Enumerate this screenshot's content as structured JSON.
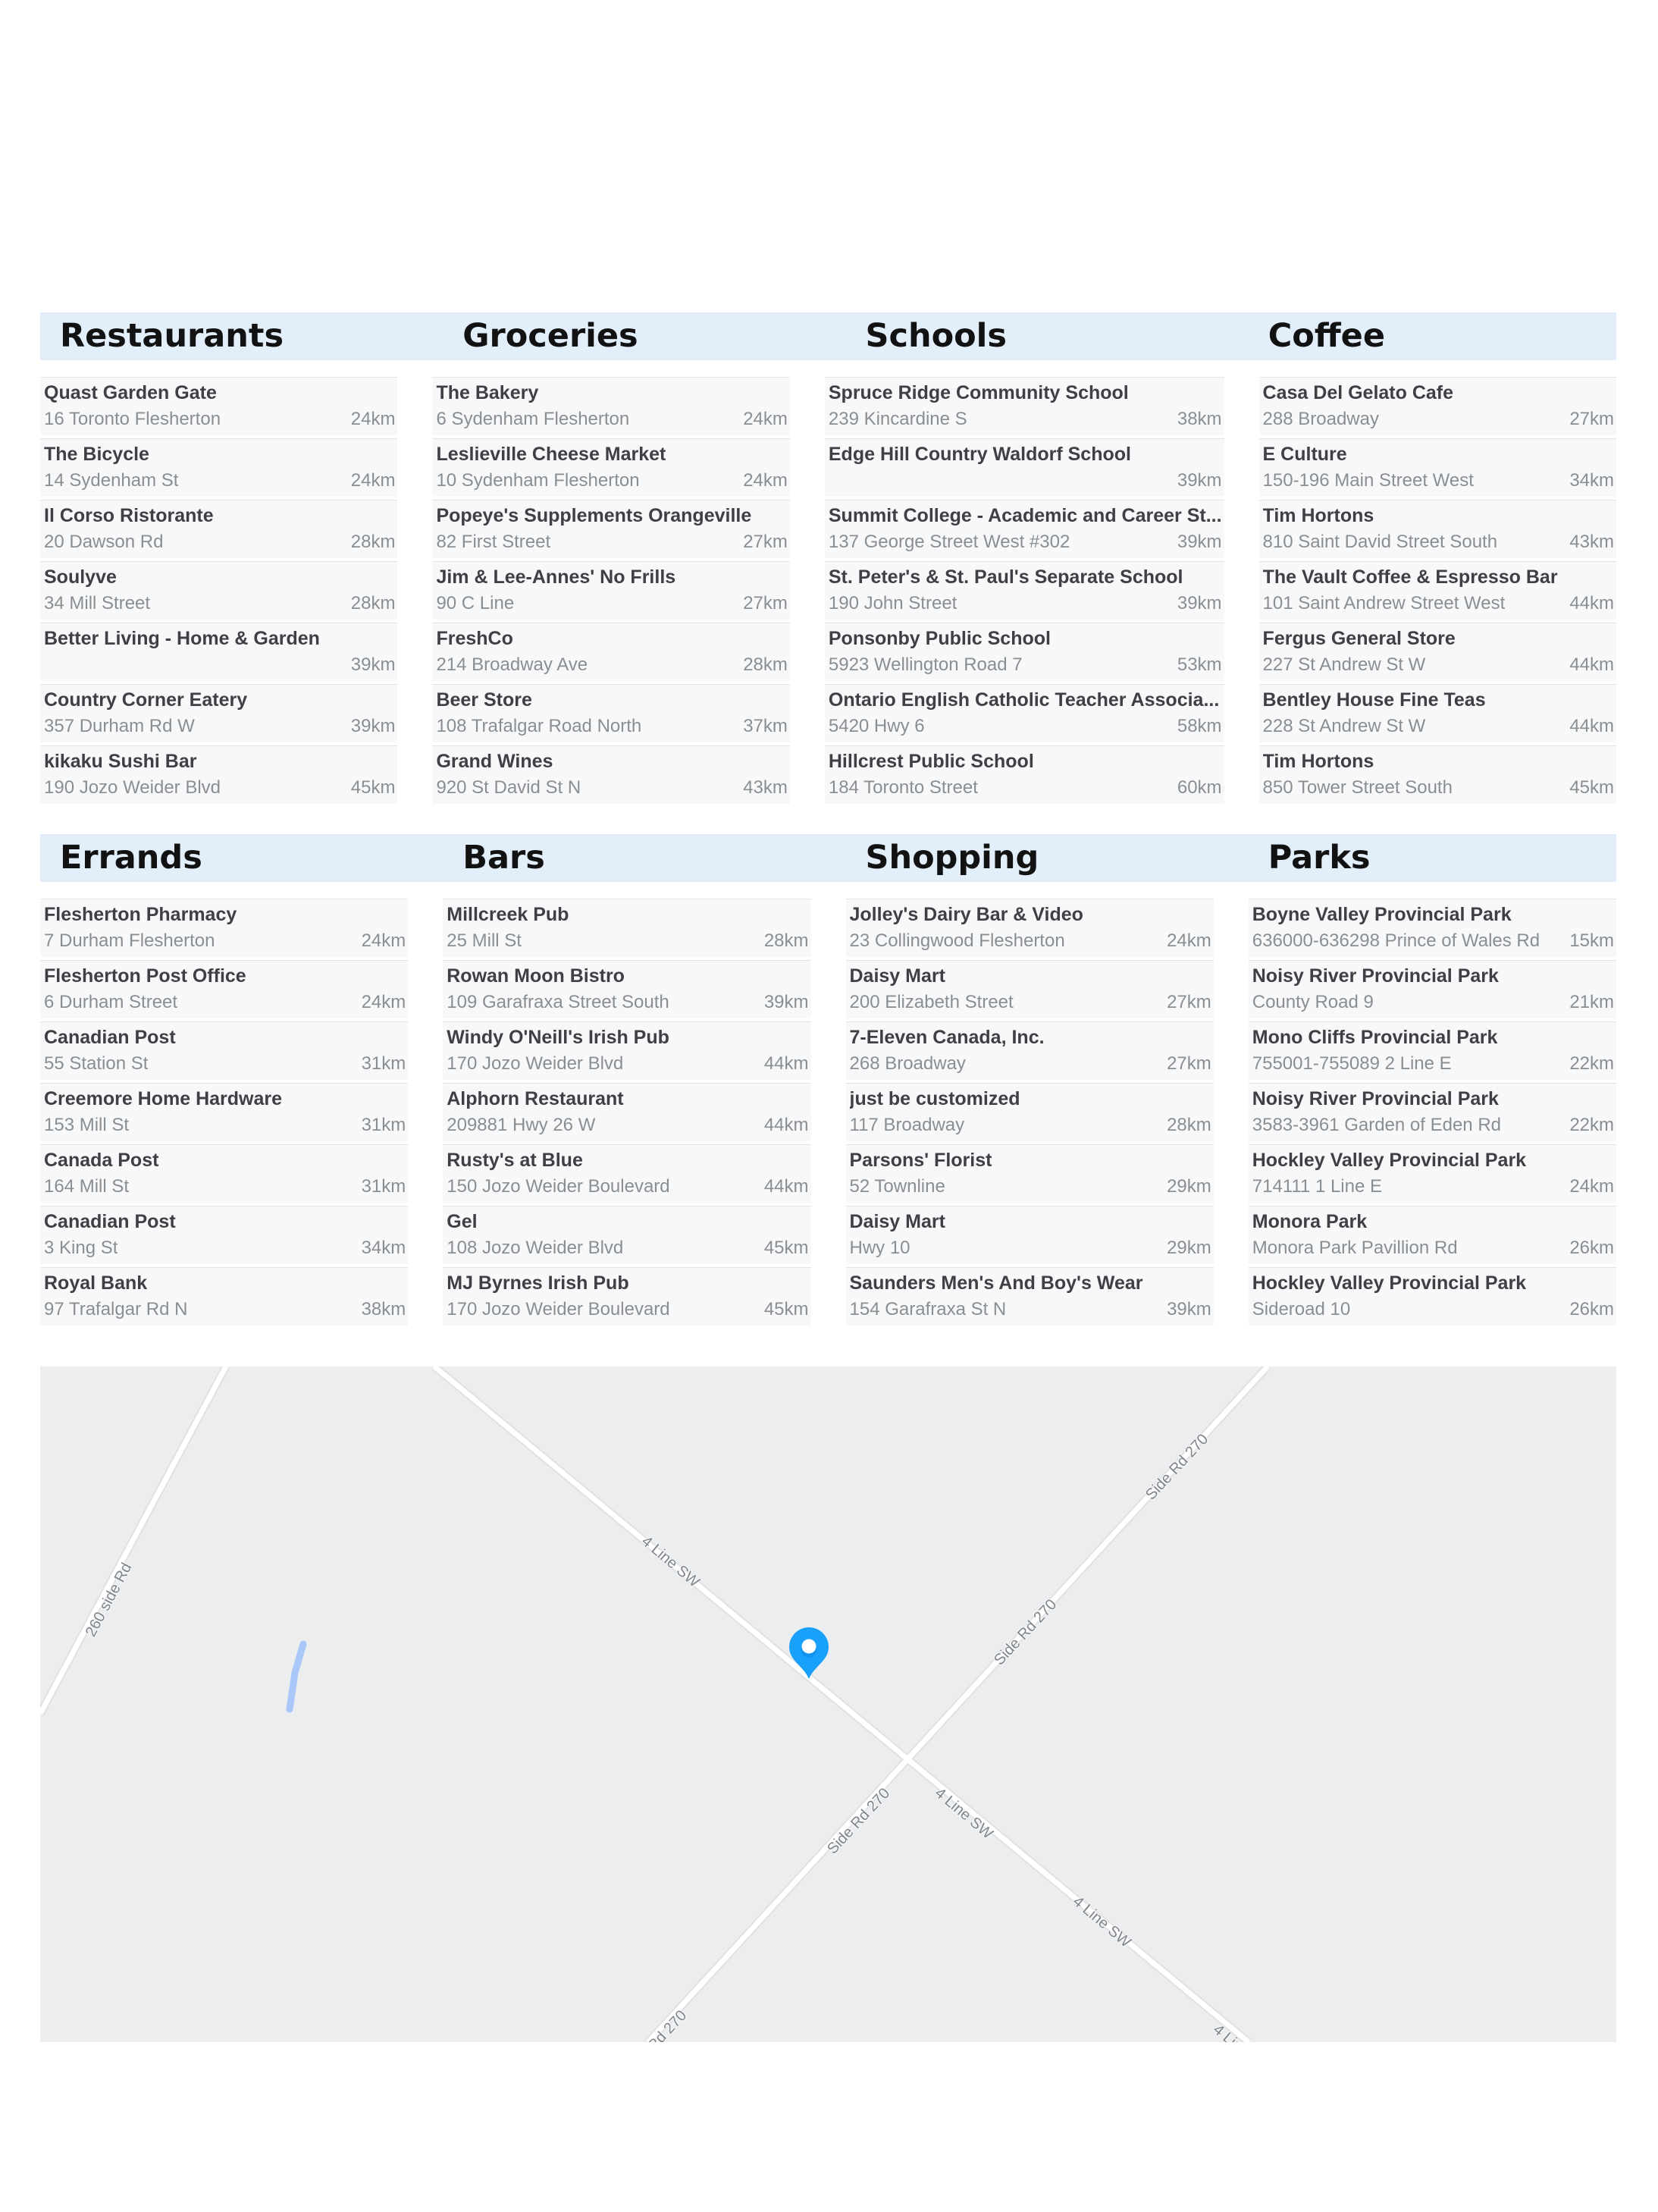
{
  "colors": {
    "bandBg": "#e3eefb",
    "rowBg": "#f7f8f9",
    "rowBorder": "#e2e3e4",
    "titleText": "#121212",
    "nameText": "#3e4043",
    "subText": "#8b8e91",
    "mapBg": "#ebedef",
    "roadFill": "#ffffff",
    "roadCasing": "#dfe1e3",
    "roadLabel": "#7f848a",
    "river": "#a9c7f8",
    "pin": "#18a0fb"
  },
  "sections": [
    {
      "title": "Restaurants",
      "items": [
        {
          "name": "Quast Garden Gate",
          "address": "16 Toronto Flesherton",
          "distance": "24km"
        },
        {
          "name": "The Bicycle",
          "address": "14 Sydenham St",
          "distance": "24km"
        },
        {
          "name": "Il Corso Ristorante",
          "address": "20 Dawson Rd",
          "distance": "28km"
        },
        {
          "name": "Soulyve",
          "address": "34 Mill Street",
          "distance": "28km"
        },
        {
          "name": "Better Living - Home & Garden",
          "address": "",
          "distance": "39km"
        },
        {
          "name": "Country Corner Eatery",
          "address": "357 Durham Rd W",
          "distance": "39km"
        },
        {
          "name": "kikaku Sushi Bar",
          "address": "190 Jozo Weider Blvd",
          "distance": "45km"
        }
      ]
    },
    {
      "title": "Groceries",
      "items": [
        {
          "name": "The Bakery",
          "address": "6 Sydenham Flesherton",
          "distance": "24km"
        },
        {
          "name": "Leslieville Cheese Market",
          "address": "10 Sydenham Flesherton",
          "distance": "24km"
        },
        {
          "name": "Popeye's Supplements Orangeville",
          "address": "82 First Street",
          "distance": "27km"
        },
        {
          "name": "Jim & Lee-Annes' No Frills",
          "address": "90 C Line",
          "distance": "27km"
        },
        {
          "name": "FreshCo",
          "address": "214 Broadway Ave",
          "distance": "28km"
        },
        {
          "name": "Beer Store",
          "address": "108 Trafalgar Road North",
          "distance": "37km"
        },
        {
          "name": "Grand Wines",
          "address": "920 St David St N",
          "distance": "43km"
        }
      ]
    },
    {
      "title": "Schools",
      "items": [
        {
          "name": "Spruce Ridge Community School",
          "address": "239 Kincardine S",
          "distance": "38km"
        },
        {
          "name": "Edge Hill Country Waldorf School",
          "address": "",
          "distance": "39km"
        },
        {
          "name": "Summit College - Academic and Career St...",
          "address": "137 George Street West #302",
          "distance": "39km"
        },
        {
          "name": "St. Peter's & St. Paul's Separate School",
          "address": "190 John Street",
          "distance": "39km"
        },
        {
          "name": "Ponsonby Public School",
          "address": "5923 Wellington Road 7",
          "distance": "53km"
        },
        {
          "name": "Ontario English Catholic Teacher Associa...",
          "address": "5420 Hwy 6",
          "distance": "58km"
        },
        {
          "name": "Hillcrest Public School",
          "address": "184 Toronto Street",
          "distance": "60km"
        }
      ]
    },
    {
      "title": "Coffee",
      "items": [
        {
          "name": "Casa Del Gelato Cafe",
          "address": "288 Broadway",
          "distance": "27km"
        },
        {
          "name": "E Culture",
          "address": "150-196 Main Street West",
          "distance": "34km"
        },
        {
          "name": "Tim Hortons",
          "address": "810 Saint David Street South",
          "distance": "43km"
        },
        {
          "name": "The Vault Coffee & Espresso Bar",
          "address": "101 Saint Andrew Street West",
          "distance": "44km"
        },
        {
          "name": "Fergus General Store",
          "address": "227 St Andrew St W",
          "distance": "44km"
        },
        {
          "name": "Bentley House Fine Teas",
          "address": "228 St Andrew St W",
          "distance": "44km"
        },
        {
          "name": "Tim Hortons",
          "address": "850 Tower Street South",
          "distance": "45km"
        }
      ]
    },
    {
      "title": "Errands",
      "items": [
        {
          "name": "Flesherton Pharmacy",
          "address": "7 Durham Flesherton",
          "distance": "24km"
        },
        {
          "name": "Flesherton Post Office",
          "address": "6 Durham Street",
          "distance": "24km"
        },
        {
          "name": "Canadian Post",
          "address": "55 Station St",
          "distance": "31km"
        },
        {
          "name": "Creemore Home Hardware",
          "address": "153 Mill St",
          "distance": "31km"
        },
        {
          "name": "Canada Post",
          "address": "164 Mill St",
          "distance": "31km"
        },
        {
          "name": "Canadian Post",
          "address": "3 King St",
          "distance": "34km"
        },
        {
          "name": "Royal Bank",
          "address": "97 Trafalgar Rd N",
          "distance": "38km"
        }
      ]
    },
    {
      "title": "Bars",
      "items": [
        {
          "name": "Millcreek Pub",
          "address": "25 Mill St",
          "distance": "28km"
        },
        {
          "name": "Rowan Moon Bistro",
          "address": "109 Garafraxa Street South",
          "distance": "39km"
        },
        {
          "name": "Windy O'Neill's Irish Pub",
          "address": "170 Jozo Weider Blvd",
          "distance": "44km"
        },
        {
          "name": "Alphorn Restaurant",
          "address": "209881 Hwy 26 W",
          "distance": "44km"
        },
        {
          "name": "Rusty's at Blue",
          "address": "150 Jozo Weider Boulevard",
          "distance": "44km"
        },
        {
          "name": "Gel",
          "address": "108 Jozo Weider Blvd",
          "distance": "45km"
        },
        {
          "name": "MJ Byrnes Irish Pub",
          "address": "170 Jozo Weider Boulevard",
          "distance": "45km"
        }
      ]
    },
    {
      "title": "Shopping",
      "items": [
        {
          "name": "Jolley's Dairy Bar & Video",
          "address": "23 Collingwood Flesherton",
          "distance": "24km"
        },
        {
          "name": "Daisy Mart",
          "address": "200 Elizabeth Street",
          "distance": "27km"
        },
        {
          "name": "7-Eleven Canada, Inc.",
          "address": "268 Broadway",
          "distance": "27km"
        },
        {
          "name": "just be customized",
          "address": "117 Broadway",
          "distance": "28km"
        },
        {
          "name": "Parsons' Florist",
          "address": "52 Townline",
          "distance": "29km"
        },
        {
          "name": "Daisy Mart",
          "address": "Hwy 10",
          "distance": "29km"
        },
        {
          "name": "Saunders Men's And Boy's Wear",
          "address": "154 Garafraxa St N",
          "distance": "39km"
        }
      ]
    },
    {
      "title": "Parks",
      "items": [
        {
          "name": "Boyne Valley Provincial Park",
          "address": "636000-636298 Prince of Wales Rd",
          "distance": "15km"
        },
        {
          "name": "Noisy River Provincial Park",
          "address": "County Road 9",
          "distance": "21km"
        },
        {
          "name": "Mono Cliffs Provincial Park",
          "address": "755001-755089 2 Line E",
          "distance": "22km"
        },
        {
          "name": "Noisy River Provincial Park",
          "address": "3583-3961 Garden of Eden Rd",
          "distance": "22km"
        },
        {
          "name": "Hockley Valley Provincial Park",
          "address": "714111 1 Line E",
          "distance": "24km"
        },
        {
          "name": "Monora Park",
          "address": "Monora Park Pavillion Rd",
          "distance": "26km"
        },
        {
          "name": "Hockley Valley Provincial Park",
          "address": "Sideroad 10",
          "distance": "26km"
        }
      ]
    }
  ],
  "map": {
    "roads": {
      "side_rd_260": "260 side Rd",
      "line_sw": "4 Line SW",
      "side_rd_270": "Side Rd 270"
    },
    "marker": "location-pin"
  }
}
